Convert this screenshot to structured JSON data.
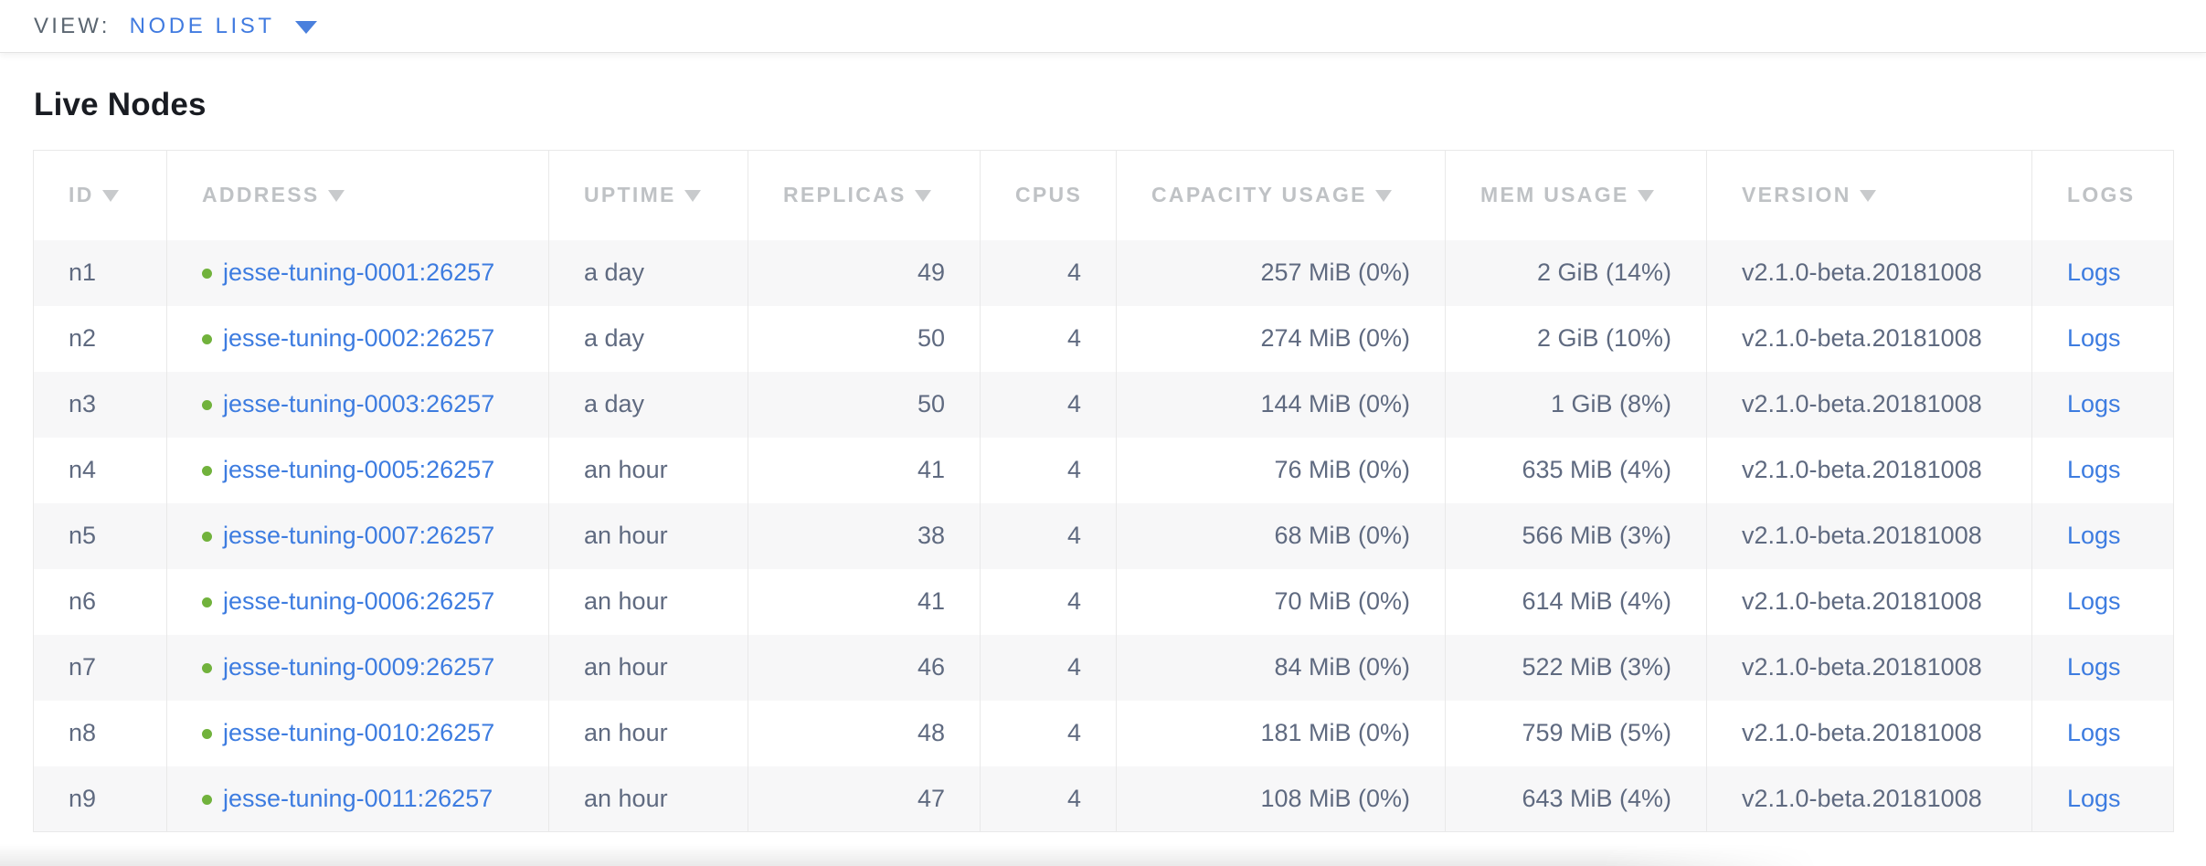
{
  "view_bar": {
    "label": "VIEW:",
    "selected": "NODE LIST"
  },
  "page": {
    "title": "Live Nodes"
  },
  "colors": {
    "link_blue": "#3d7ce0",
    "dropdown_blue": "#417be0",
    "status_green": "#71b23c",
    "header_gray": "#bfc2c5",
    "cell_slate": "#5f6a80"
  },
  "table": {
    "columns": [
      {
        "label": "ID",
        "sortable": true
      },
      {
        "label": "ADDRESS",
        "sortable": true
      },
      {
        "label": "UPTIME",
        "sortable": true
      },
      {
        "label": "REPLICAS",
        "sortable": true
      },
      {
        "label": "CPUS",
        "sortable": false
      },
      {
        "label": "CAPACITY USAGE",
        "sortable": true
      },
      {
        "label": "MEM USAGE",
        "sortable": true
      },
      {
        "label": "VERSION",
        "sortable": true
      },
      {
        "label": "LOGS",
        "sortable": false
      }
    ],
    "rows": [
      {
        "id": "n1",
        "status": "healthy",
        "address": "jesse-tuning-0001:26257",
        "uptime": "a day",
        "replicas": "49",
        "cpus": "4",
        "capacity": "257 MiB (0%)",
        "mem": "2 GiB (14%)",
        "version": "v2.1.0-beta.20181008",
        "logs": "Logs"
      },
      {
        "id": "n2",
        "status": "healthy",
        "address": "jesse-tuning-0002:26257",
        "uptime": "a day",
        "replicas": "50",
        "cpus": "4",
        "capacity": "274 MiB (0%)",
        "mem": "2 GiB (10%)",
        "version": "v2.1.0-beta.20181008",
        "logs": "Logs"
      },
      {
        "id": "n3",
        "status": "healthy",
        "address": "jesse-tuning-0003:26257",
        "uptime": "a day",
        "replicas": "50",
        "cpus": "4",
        "capacity": "144 MiB (0%)",
        "mem": "1 GiB (8%)",
        "version": "v2.1.0-beta.20181008",
        "logs": "Logs"
      },
      {
        "id": "n4",
        "status": "healthy",
        "address": "jesse-tuning-0005:26257",
        "uptime": "an hour",
        "replicas": "41",
        "cpus": "4",
        "capacity": "76 MiB (0%)",
        "mem": "635 MiB (4%)",
        "version": "v2.1.0-beta.20181008",
        "logs": "Logs"
      },
      {
        "id": "n5",
        "status": "healthy",
        "address": "jesse-tuning-0007:26257",
        "uptime": "an hour",
        "replicas": "38",
        "cpus": "4",
        "capacity": "68 MiB (0%)",
        "mem": "566 MiB (3%)",
        "version": "v2.1.0-beta.20181008",
        "logs": "Logs"
      },
      {
        "id": "n6",
        "status": "healthy",
        "address": "jesse-tuning-0006:26257",
        "uptime": "an hour",
        "replicas": "41",
        "cpus": "4",
        "capacity": "70 MiB (0%)",
        "mem": "614 MiB (4%)",
        "version": "v2.1.0-beta.20181008",
        "logs": "Logs"
      },
      {
        "id": "n7",
        "status": "healthy",
        "address": "jesse-tuning-0009:26257",
        "uptime": "an hour",
        "replicas": "46",
        "cpus": "4",
        "capacity": "84 MiB (0%)",
        "mem": "522 MiB (3%)",
        "version": "v2.1.0-beta.20181008",
        "logs": "Logs"
      },
      {
        "id": "n8",
        "status": "healthy",
        "address": "jesse-tuning-0010:26257",
        "uptime": "an hour",
        "replicas": "48",
        "cpus": "4",
        "capacity": "181 MiB (0%)",
        "mem": "759 MiB (5%)",
        "version": "v2.1.0-beta.20181008",
        "logs": "Logs"
      },
      {
        "id": "n9",
        "status": "healthy",
        "address": "jesse-tuning-0011:26257",
        "uptime": "an hour",
        "replicas": "47",
        "cpus": "4",
        "capacity": "108 MiB (0%)",
        "mem": "643 MiB (4%)",
        "version": "v2.1.0-beta.20181008",
        "logs": "Logs"
      }
    ]
  }
}
